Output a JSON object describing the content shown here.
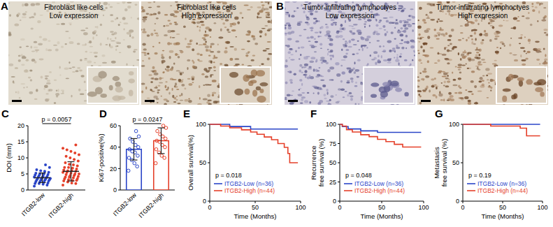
{
  "chart_data": [
    {
      "type": "image",
      "panel": "A",
      "images": [
        {
          "title": "Fibroblast like cells",
          "subtitle": "Low expression"
        },
        {
          "title": "Fibroblast like cells",
          "subtitle": "High expression"
        }
      ]
    },
    {
      "type": "image",
      "panel": "B",
      "images": [
        {
          "title": "Tumor-infiltrating lymphoctyes",
          "subtitle": "Low expression"
        },
        {
          "title": "Tumor-infiltrating lymphoctyes",
          "subtitle": "High expression"
        }
      ]
    },
    {
      "type": "dot_plot",
      "panel": "C",
      "y_label": "DOI (mm)",
      "categories": [
        "ITGB2-low",
        "ITGB2-high"
      ],
      "colors": [
        "#2a45c8",
        "#e5402a"
      ],
      "points": [
        [
          1.2,
          1.5,
          1.8,
          2,
          2,
          2.2,
          2.4,
          2.5,
          2.6,
          2.8,
          3,
          3,
          3.1,
          3.2,
          3.3,
          3.5,
          3.5,
          3.6,
          3.8,
          3.9,
          4,
          4,
          4.2,
          4.3,
          4.5,
          4.6,
          4.8,
          5,
          5,
          5.2,
          5.5,
          5.8,
          6,
          6.3,
          7,
          7.8
        ],
        [
          1.5,
          2,
          2.2,
          2.5,
          2.8,
          3,
          3,
          3.2,
          3.5,
          3.5,
          3.8,
          4,
          4,
          4.2,
          4.5,
          4.5,
          4.8,
          5,
          5,
          5.2,
          5.5,
          5.5,
          5.8,
          6,
          6,
          6.2,
          6.5,
          6.8,
          7,
          7,
          7.5,
          7.8,
          8,
          8.5,
          9,
          9.5,
          10,
          10.5,
          11,
          11.5,
          12,
          12.5,
          13,
          14
        ]
      ],
      "values": [
        3.8,
        5.8
      ],
      "errors": [
        1.5,
        3.0
      ],
      "ylim": [
        0,
        20
      ],
      "yticks": [
        0,
        5,
        10,
        15,
        20
      ],
      "annotations": [
        "p = 0.0057"
      ]
    },
    {
      "type": "bar",
      "panel": "D",
      "y_label": "Ki67-positive(%)",
      "categories": [
        "ITGB2-low",
        "ITGB2-high"
      ],
      "colors": [
        "#2a45c8",
        "#e5402a"
      ],
      "points": [
        [
          18,
          22,
          25,
          28,
          30,
          32,
          35,
          36,
          38,
          40,
          42,
          45,
          48,
          50,
          55
        ],
        [
          25,
          30,
          32,
          35,
          38,
          40,
          42,
          45,
          46,
          48,
          50,
          52,
          55,
          58,
          60
        ]
      ],
      "values": [
        38,
        46
      ],
      "errors": [
        10,
        12
      ],
      "ylim": [
        0,
        60
      ],
      "yticks": [
        0,
        20,
        40,
        60
      ],
      "annotations": [
        "p = 0.0247"
      ]
    },
    {
      "type": "line",
      "panel": "E",
      "y_label": "Overall survival(%)",
      "x_label": "Time (Months)",
      "xlim": [
        0,
        100
      ],
      "xticks": [
        0,
        50,
        100
      ],
      "ylim": [
        0,
        100
      ],
      "yticks": [
        0,
        50,
        100
      ],
      "legend": "lower left",
      "series": [
        {
          "name": "ITGB2-Low (n=36)",
          "color": "#2a45c8",
          "x": [
            0,
            22,
            22,
            45,
            45,
            97
          ],
          "values": [
            100,
            100,
            97.2,
            97.2,
            93.8,
            93.8
          ]
        },
        {
          "name": "ITGB2-High (n=44)",
          "color": "#e5402a",
          "x": [
            0,
            12,
            12,
            22,
            22,
            35,
            35,
            45,
            45,
            52,
            52,
            60,
            60,
            68,
            68,
            75,
            75,
            82,
            82,
            86,
            86,
            88,
            88,
            97
          ],
          "values": [
            100,
            100,
            97.7,
            97.7,
            95.4,
            95.4,
            92.8,
            92.8,
            90,
            90,
            87,
            87,
            83.5,
            83.5,
            80,
            80,
            75,
            75,
            70,
            70,
            62,
            62,
            50,
            50
          ]
        }
      ],
      "annotations": [
        "p = 0.018"
      ]
    },
    {
      "type": "line",
      "panel": "F",
      "y_label": "Recurrence\nfree survival (%)",
      "x_label": "Time (Months)",
      "xlim": [
        0,
        100
      ],
      "xticks": [
        0,
        50,
        100
      ],
      "ylim": [
        0,
        100
      ],
      "yticks": [
        0,
        25,
        50,
        75,
        100
      ],
      "legend": "lower left",
      "series": [
        {
          "name": "ITGB2-Low (n=36)",
          "color": "#2a45c8",
          "x": [
            0,
            3,
            3,
            10,
            10,
            25,
            25,
            45,
            45,
            97
          ],
          "values": [
            100,
            100,
            97,
            97,
            94,
            94,
            91.5,
            91.5,
            89.5,
            89.5
          ]
        },
        {
          "name": "ITGB2-High (n=44)",
          "color": "#e5402a",
          "x": [
            0,
            3,
            3,
            8,
            8,
            15,
            15,
            25,
            25,
            35,
            35,
            45,
            45,
            55,
            55,
            65,
            65,
            75,
            75,
            97
          ],
          "values": [
            100,
            100,
            97.7,
            97.7,
            93,
            93,
            90,
            90,
            86.5,
            86.5,
            84,
            84,
            80.5,
            80.5,
            77.5,
            77.5,
            74,
            74,
            70.5,
            70.5
          ]
        }
      ],
      "annotations": [
        "p = 0.048"
      ]
    },
    {
      "type": "line",
      "panel": "G",
      "y_label": "Metastasis\nfree survival (%)",
      "x_label": "Time (Months)",
      "xlim": [
        0,
        100
      ],
      "xticks": [
        0,
        50,
        100
      ],
      "ylim": [
        0,
        100
      ],
      "yticks": [
        0,
        50,
        100
      ],
      "legend": "lower left",
      "series": [
        {
          "name": "ITGB2-Low (n=36)",
          "color": "#2a45c8",
          "x": [
            0,
            97
          ],
          "values": [
            100,
            100
          ]
        },
        {
          "name": "ITGB2-High (n=44)",
          "color": "#e5402a",
          "x": [
            0,
            35,
            35,
            72,
            72,
            80,
            80,
            97
          ],
          "values": [
            100,
            100,
            97.7,
            97.7,
            95,
            95,
            85,
            85
          ]
        }
      ],
      "annotations": [
        "p = 0.19"
      ]
    }
  ]
}
